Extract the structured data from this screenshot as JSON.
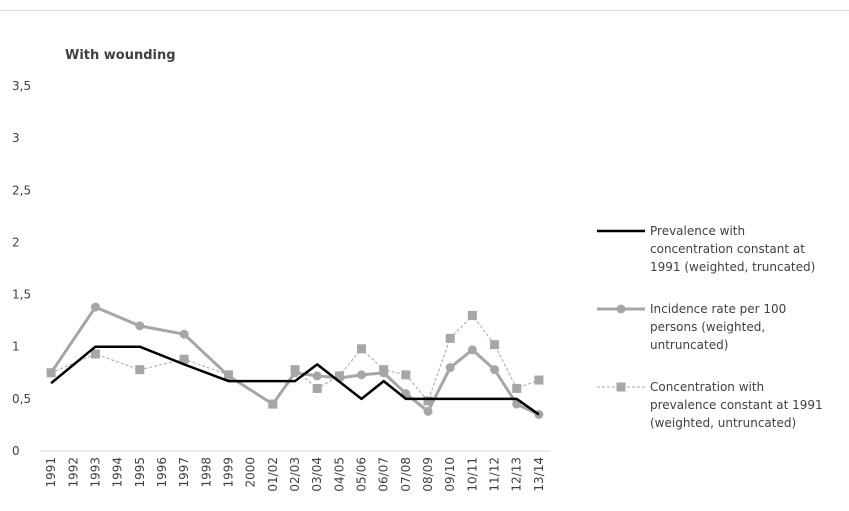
{
  "chart_data": {
    "type": "line",
    "title": "With wounding",
    "xlabel": "",
    "ylabel": "",
    "ylim": [
      0,
      3.5
    ],
    "yticks": [
      "0",
      "0,5",
      "1",
      "1,5",
      "2",
      "2,5",
      "3",
      "3,5"
    ],
    "categories": [
      "1991",
      "1992",
      "1993",
      "1994",
      "1995",
      "1996",
      "1997",
      "1998",
      "1999",
      "2000",
      "01/02",
      "02/03",
      "03/04",
      "04/05",
      "05/06",
      "06/07",
      "07/08",
      "08/09",
      "09/10",
      "10/11",
      "11/12",
      "12/13",
      "13/14"
    ],
    "grid": false,
    "legend_position": "right",
    "series": [
      {
        "name": "Prevalence with concentration constant at 1991 (weighted, truncated)",
        "legend_lines": [
          "Prevalence with",
          "concentration constant at",
          "1991 (weighted, truncated)"
        ],
        "color": "#000000",
        "style": "solid",
        "marker": "none",
        "values": [
          0.65,
          null,
          1.0,
          null,
          1.0,
          null,
          0.83,
          null,
          0.67,
          null,
          null,
          0.67,
          0.83,
          null,
          0.5,
          0.67,
          0.5,
          0.5,
          null,
          0.5,
          null,
          0.5,
          0.35
        ]
      },
      {
        "name": "Incidence rate per 100 persons (weighted, untruncated)",
        "legend_lines": [
          "Incidence rate per 100",
          "persons (weighted,",
          "untruncated)"
        ],
        "color": "#a6a6a6",
        "style": "solid",
        "marker": "circle",
        "values": [
          0.75,
          null,
          1.38,
          null,
          1.2,
          null,
          1.12,
          null,
          0.72,
          null,
          0.45,
          0.75,
          0.72,
          0.7,
          0.73,
          0.75,
          0.55,
          0.38,
          0.8,
          0.97,
          0.78,
          0.45,
          0.35
        ]
      },
      {
        "name": "Concentration with prevalence constant at 1991 (weighted, untruncated)",
        "legend_lines": [
          "Concentration with",
          "prevalence constant at 1991",
          "(weighted, untruncated)"
        ],
        "color": "#a6a6a6",
        "style": "dashed",
        "marker": "square",
        "values": [
          0.75,
          null,
          0.93,
          null,
          0.78,
          null,
          0.88,
          null,
          0.73,
          null,
          0.45,
          0.78,
          0.6,
          0.72,
          0.98,
          0.78,
          0.73,
          0.48,
          1.08,
          1.3,
          1.02,
          0.6,
          0.68
        ]
      }
    ]
  }
}
